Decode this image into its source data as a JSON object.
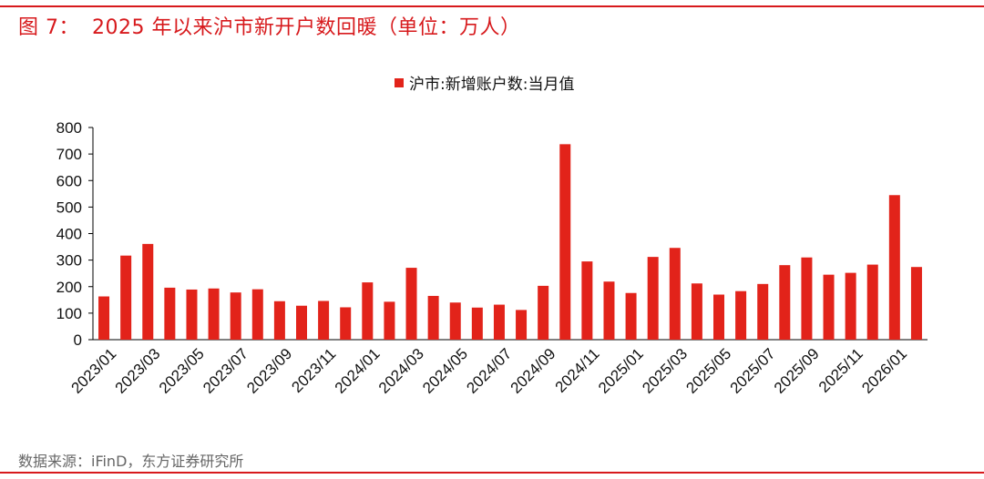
{
  "header": {
    "figure_label": "图 7：",
    "title": "2025 年以来沪市新开户数回暖（单位：万人）"
  },
  "footer": {
    "source": "数据来源：iFinD，东方证券研究所"
  },
  "colors": {
    "accent": "#d7191c",
    "bar": "#e2231a"
  },
  "chart_data": {
    "type": "bar",
    "title": "",
    "xlabel": "",
    "ylabel": "",
    "ylim": [
      0,
      800
    ],
    "yticks": [
      0,
      100,
      200,
      300,
      400,
      500,
      600,
      700,
      800
    ],
    "legend": {
      "position": "top-center"
    },
    "grid": false,
    "categories": [
      "2023/01",
      "2023/02",
      "2023/03",
      "2023/04",
      "2023/05",
      "2023/06",
      "2023/07",
      "2023/08",
      "2023/09",
      "2023/10",
      "2023/11",
      "2023/12",
      "2024/01",
      "2024/02",
      "2024/03",
      "2024/04",
      "2024/05",
      "2024/06",
      "2024/07",
      "2024/08",
      "2024/09",
      "2024/10",
      "2024/11",
      "2024/12",
      "2025/01",
      "2025/02",
      "2025/03",
      "2025/04",
      "2025/05",
      "2025/06",
      "2025/07",
      "2025/08",
      "2025/09",
      "2025/10",
      "2025/11",
      "2025/12",
      "2026/01",
      "2026/02"
    ],
    "tick_labels": [
      "2023/01",
      "2023/03",
      "2023/05",
      "2023/07",
      "2023/09",
      "2023/11",
      "2024/01",
      "2024/03",
      "2024/05",
      "2024/07",
      "2024/09",
      "2024/11",
      "2025/01",
      "2025/03",
      "2025/05",
      "2025/07",
      "2025/09",
      "2025/11",
      "2026/01"
    ],
    "series": [
      {
        "name": "沪市:新增账户数:当月值",
        "values": [
          163,
          317,
          361,
          196,
          189,
          193,
          178,
          190,
          145,
          128,
          146,
          122,
          216,
          143,
          271,
          165,
          140,
          121,
          132,
          112,
          203,
          737,
          295,
          219,
          176,
          312,
          346,
          212,
          170,
          183,
          210,
          281,
          310,
          245,
          252,
          283,
          545,
          274
        ]
      }
    ]
  }
}
